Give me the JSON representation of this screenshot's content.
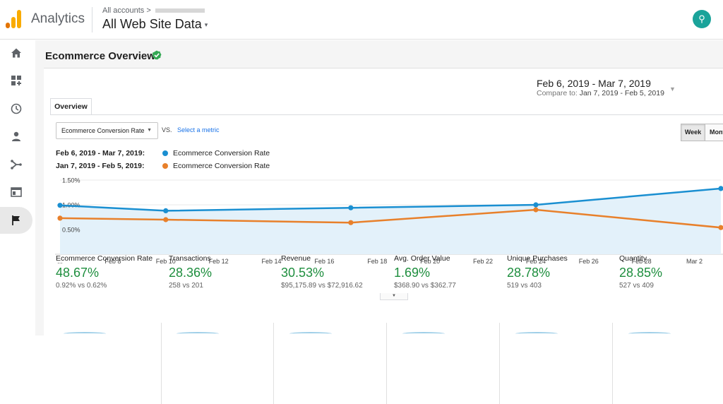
{
  "header": {
    "app_name": "Analytics",
    "breadcrumb": "All accounts",
    "breadcrumb_sep": ">",
    "view_name": "All Web Site Data",
    "view_caret": "▾",
    "avatar_glyph": "⚲"
  },
  "colors": {
    "logo_orange": "#f9ab00",
    "logo_dark_orange": "#e37400",
    "series_current": "#1a8fd1",
    "series_previous": "#e8802b",
    "positive_change": "#1e8e3e",
    "verified_badge": "#34a853"
  },
  "sidebar": {
    "items": [
      {
        "icon": "home-icon"
      },
      {
        "icon": "customization-icon"
      },
      {
        "icon": "realtime-clock-icon"
      },
      {
        "icon": "audience-person-icon"
      },
      {
        "icon": "acquisition-icon"
      },
      {
        "icon": "behavior-icon"
      },
      {
        "icon": "conversions-flag-icon",
        "active": true
      }
    ]
  },
  "page": {
    "title": "Ecommerce Overview",
    "date_range": "Feb 6, 2019 - Mar 7, 2019",
    "compare_prefix": "Compare to:",
    "compare_range": "Jan 7, 2019 - Feb 5, 2019",
    "tab": "Overview",
    "metric_select": "Ecommerce Conversion Rate",
    "vs": "VS.",
    "select_metric": "Select a metric",
    "week_button": "Week",
    "month_button": "Month"
  },
  "legend": [
    {
      "range": "Feb 6, 2019 - Mar 7, 2019:",
      "label": "Ecommerce Conversion Rate"
    },
    {
      "range": "Jan 7, 2019 - Feb 5, 2019:",
      "label": "Ecommerce Conversion Rate"
    }
  ],
  "chart_data": {
    "type": "line",
    "x_ticks": [
      "...",
      "Feb 8",
      "Feb 10",
      "Feb 12",
      "Feb 14",
      "Feb 16",
      "Feb 18",
      "Feb 20",
      "Feb 22",
      "Feb 24",
      "Feb 26",
      "Feb 28",
      "Mar 2"
    ],
    "y_ticks": [
      "1.50%",
      "1.00%",
      "0.50%"
    ],
    "ylim": [
      0,
      1.5
    ],
    "series": [
      {
        "points": [
          {
            "day": 0,
            "value": 0.99
          },
          {
            "day": 4,
            "value": 0.88
          },
          {
            "day": 11,
            "value": 0.94
          },
          {
            "day": 18,
            "value": 1.0
          },
          {
            "day": 25,
            "value": 1.33
          }
        ]
      },
      {
        "points": [
          {
            "day": 0,
            "value": 0.73
          },
          {
            "day": 4,
            "value": 0.7
          },
          {
            "day": 11,
            "value": 0.64
          },
          {
            "day": 18,
            "value": 0.9
          },
          {
            "day": 25,
            "value": 0.54
          }
        ]
      }
    ]
  },
  "stats": [
    {
      "label": "Ecommerce Conversion Rate",
      "pct": "48.67%",
      "cmp": "0.92% vs 0.62%"
    },
    {
      "label": "Transactions",
      "pct": "28.36%",
      "cmp": "258 vs 201"
    },
    {
      "label": "Revenue",
      "pct": "30.53%",
      "cmp": "$95,175.89 vs $72,916.62"
    },
    {
      "label": "Avg. Order Value",
      "pct": "1.69%",
      "cmp": "$368.90 vs $362.77"
    },
    {
      "label": "Unique Purchases",
      "pct": "28.78%",
      "cmp": "519 vs 403"
    },
    {
      "label": "Quantity",
      "pct": "28.85%",
      "cmp": "527 vs 409"
    }
  ]
}
